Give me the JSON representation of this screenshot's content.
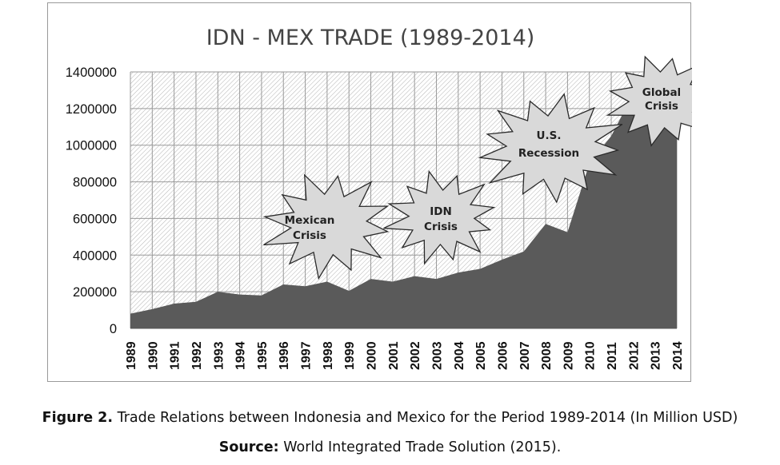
{
  "chart_data": {
    "type": "area",
    "title": "IDN - MEX TRADE (1989-2014)",
    "xlabel": "",
    "ylabel": "",
    "categories": [
      "1989",
      "1990",
      "1991",
      "1992",
      "1993",
      "1994",
      "1995",
      "1996",
      "1997",
      "1998",
      "1999",
      "2000",
      "2001",
      "2002",
      "2003",
      "2004",
      "2005",
      "2006",
      "2007",
      "2008",
      "2009",
      "2010",
      "2011",
      "2012",
      "2013",
      "2014"
    ],
    "values": [
      80000,
      105000,
      135000,
      145000,
      200000,
      185000,
      180000,
      240000,
      230000,
      255000,
      205000,
      270000,
      255000,
      285000,
      270000,
      305000,
      325000,
      375000,
      420000,
      570000,
      525000,
      900000,
      1050000,
      1280000,
      1250000,
      1050000
    ],
    "ylim": [
      0,
      1400000
    ],
    "yticks": [
      "0",
      "200000",
      "400000",
      "600000",
      "800000",
      "1000000",
      "1200000",
      "1400000"
    ],
    "grid": true,
    "colors": {
      "area": "#5a5a5a",
      "plot_hatch": "#b4b4b4",
      "burst_fill": "#d9d9d9",
      "burst_stroke": "#2a2a2a"
    },
    "annotations": [
      {
        "lines": [
          "Mexican",
          "Crisis"
        ]
      },
      {
        "lines": [
          "IDN",
          "Crisis"
        ]
      },
      {
        "lines": [
          "U.S.",
          "Recession"
        ]
      },
      {
        "lines": [
          "Global",
          "Crisis"
        ]
      }
    ]
  },
  "caption": {
    "figure_label": "Figure 2.",
    "figure_text": " Trade Relations between Indonesia and Mexico for the Period 1989-2014 (In Million USD)",
    "source_label": "Source:",
    "source_text": " World Integrated Trade Solution (2015)."
  }
}
